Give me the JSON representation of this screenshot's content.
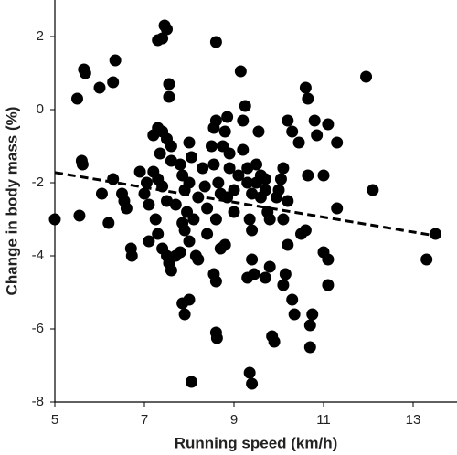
{
  "chart_data": {
    "type": "scatter",
    "x_label": "Running speed (km/h)",
    "y_label": "Change in body mass (%)",
    "color": "#000000",
    "marker_radius": 6.5,
    "x": [
      5.0,
      5.5,
      5.55,
      5.6,
      5.62,
      5.65,
      5.68,
      6.0,
      6.05,
      6.2,
      6.3,
      6.35,
      6.3,
      6.5,
      6.55,
      6.6,
      6.7,
      6.72,
      6.9,
      7.0,
      7.05,
      7.1,
      7.2,
      7.3,
      7.4,
      7.45,
      7.5,
      7.55,
      7.55,
      7.3,
      7.4,
      7.5,
      7.35,
      7.6,
      7.6,
      7.2,
      7.3,
      7.4,
      7.1,
      7.25,
      7.3,
      7.4,
      7.5,
      7.55,
      7.6,
      7.7,
      7.8,
      7.5,
      7.7,
      7.8,
      7.85,
      7.9,
      8.0,
      8.0,
      8.05,
      7.95,
      7.85,
      7.9,
      8.0,
      8.1,
      8.2,
      8.15,
      8.2,
      7.85,
      7.9,
      8.0,
      8.05,
      8.3,
      8.35,
      8.4,
      8.4,
      8.5,
      8.55,
      8.6,
      8.55,
      8.65,
      8.7,
      8.6,
      8.55,
      8.6,
      8.6,
      8.62,
      8.6,
      8.7,
      8.8,
      8.75,
      8.8,
      8.85,
      8.9,
      8.9,
      8.85,
      9.0,
      9.0,
      9.1,
      9.2,
      9.2,
      9.15,
      9.25,
      9.3,
      9.3,
      9.4,
      9.35,
      9.4,
      9.4,
      9.3,
      9.45,
      9.5,
      9.5,
      9.55,
      9.6,
      9.6,
      9.7,
      9.7,
      9.75,
      9.8,
      9.8,
      9.7,
      9.85,
      9.9,
      9.35,
      9.4,
      9.95,
      10.0,
      10.05,
      10.1,
      10.1,
      10.2,
      10.15,
      10.1,
      10.2,
      10.3,
      10.35,
      10.2,
      10.3,
      10.45,
      10.6,
      10.65,
      10.8,
      10.85,
      10.65,
      10.6,
      10.5,
      10.7,
      10.75,
      10.7,
      11.0,
      11.0,
      11.1,
      11.1,
      11.1,
      11.3,
      11.3,
      11.95,
      12.1,
      13.3,
      13.5
    ],
    "values": [
      -3.0,
      0.3,
      -2.9,
      -1.4,
      -1.5,
      1.1,
      1.0,
      0.6,
      -2.3,
      -3.1,
      0.75,
      1.35,
      -1.9,
      -2.3,
      -2.5,
      -2.7,
      -3.8,
      -4.0,
      -1.7,
      -2.3,
      -2.0,
      -3.6,
      -0.7,
      1.9,
      1.95,
      2.3,
      2.2,
      0.7,
      0.35,
      -0.5,
      -0.6,
      -0.8,
      -1.2,
      -1.0,
      -1.4,
      -1.7,
      -1.9,
      -2.1,
      -2.6,
      -3.0,
      -3.4,
      -3.8,
      -4.0,
      -4.2,
      -4.4,
      -4.0,
      -3.9,
      -2.5,
      -2.6,
      -1.5,
      -1.8,
      -2.2,
      -2.0,
      -0.9,
      -1.3,
      -2.8,
      -3.1,
      -3.3,
      -3.6,
      -3.0,
      -2.4,
      -4.0,
      -4.1,
      -5.3,
      -5.6,
      -5.2,
      -7.45,
      -1.6,
      -2.1,
      -2.7,
      -3.4,
      -1.0,
      -0.5,
      -0.3,
      -1.5,
      -2.0,
      -2.3,
      -3.0,
      -4.5,
      -4.7,
      -6.1,
      -6.25,
      1.85,
      -3.8,
      -3.7,
      -1.0,
      -0.6,
      -0.2,
      -1.2,
      -1.6,
      -2.4,
      -2.2,
      -2.8,
      -1.8,
      -1.1,
      -0.3,
      1.05,
      0.1,
      -1.6,
      -2.0,
      -2.3,
      -3.0,
      -3.3,
      -4.1,
      -4.6,
      -4.5,
      -2.0,
      -1.5,
      -0.6,
      -2.4,
      -1.8,
      -1.9,
      -2.2,
      -2.8,
      -3.0,
      -4.3,
      -4.6,
      -6.2,
      -6.35,
      -7.2,
      -7.5,
      -2.4,
      -2.2,
      -1.9,
      -1.6,
      -3.0,
      -3.7,
      -4.5,
      -4.8,
      -2.5,
      -5.2,
      -5.6,
      -0.3,
      -0.6,
      -0.9,
      0.6,
      0.3,
      -0.3,
      -0.7,
      -1.8,
      -3.3,
      -3.4,
      -5.9,
      -5.6,
      -6.5,
      -1.8,
      -3.9,
      -4.1,
      -4.8,
      -0.4,
      -0.9,
      -2.7,
      0.9,
      -2.2,
      -4.1,
      -3.4
    ],
    "trendline": {
      "x": [
        5,
        13.5
      ],
      "values": [
        -1.72,
        -3.45
      ],
      "style": "dashed"
    },
    "xlim": [
      5,
      14
    ],
    "ylim": [
      -8,
      3
    ],
    "xticks": [
      5,
      7,
      9,
      11,
      13
    ],
    "yticks": [
      -8,
      -6,
      -4,
      -2,
      0,
      2
    ]
  }
}
